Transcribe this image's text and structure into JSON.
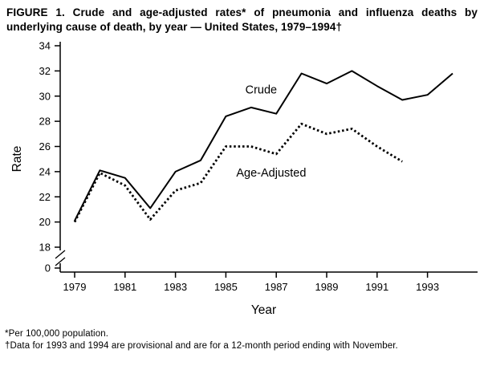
{
  "figure": {
    "title": "FIGURE 1. Crude and age-adjusted rates* of pneumonia and influenza deaths by underlying cause of death, by year — United States, 1979–1994†",
    "footnotes": [
      "*Per 100,000 population.",
      "†Data for 1993 and 1994 are provisional and are for a 12-month period ending with November."
    ]
  },
  "chart_data": {
    "type": "line",
    "title": "",
    "xlabel": "Year",
    "ylabel": "Rate",
    "x": [
      1979,
      1980,
      1981,
      1982,
      1983,
      1984,
      1985,
      1986,
      1987,
      1988,
      1989,
      1990,
      1991,
      1992,
      1993,
      1994
    ],
    "series": [
      {
        "name": "Crude",
        "line_style": "solid",
        "color": "#000000",
        "values": [
          20.1,
          24.1,
          23.5,
          21.1,
          24.0,
          24.9,
          28.4,
          29.1,
          28.6,
          31.8,
          31.0,
          32.0,
          30.8,
          29.7,
          30.1,
          31.8
        ]
      },
      {
        "name": "Age-Adjusted",
        "line_style": "dotted",
        "color": "#000000",
        "values": [
          20.0,
          23.9,
          22.9,
          20.2,
          22.5,
          23.1,
          26.0,
          26.0,
          25.4,
          27.8,
          27.0,
          27.4,
          26.0,
          24.8,
          null,
          null
        ]
      }
    ],
    "x_ticks": [
      1979,
      1981,
      1983,
      1985,
      1987,
      1989,
      1991,
      1993
    ],
    "y_ticks": [
      0,
      18,
      20,
      22,
      24,
      26,
      28,
      30,
      32,
      34
    ],
    "ylim": [
      18,
      34
    ],
    "y_axis_break": true,
    "grid": false,
    "legend": "inline-annotations",
    "annotations": [
      {
        "text": "Crude",
        "year": 1986.4,
        "value": 30.2
      },
      {
        "text": "Age-Adjusted",
        "year": 1986.8,
        "value": 23.6
      }
    ],
    "background": "#ffffff"
  }
}
